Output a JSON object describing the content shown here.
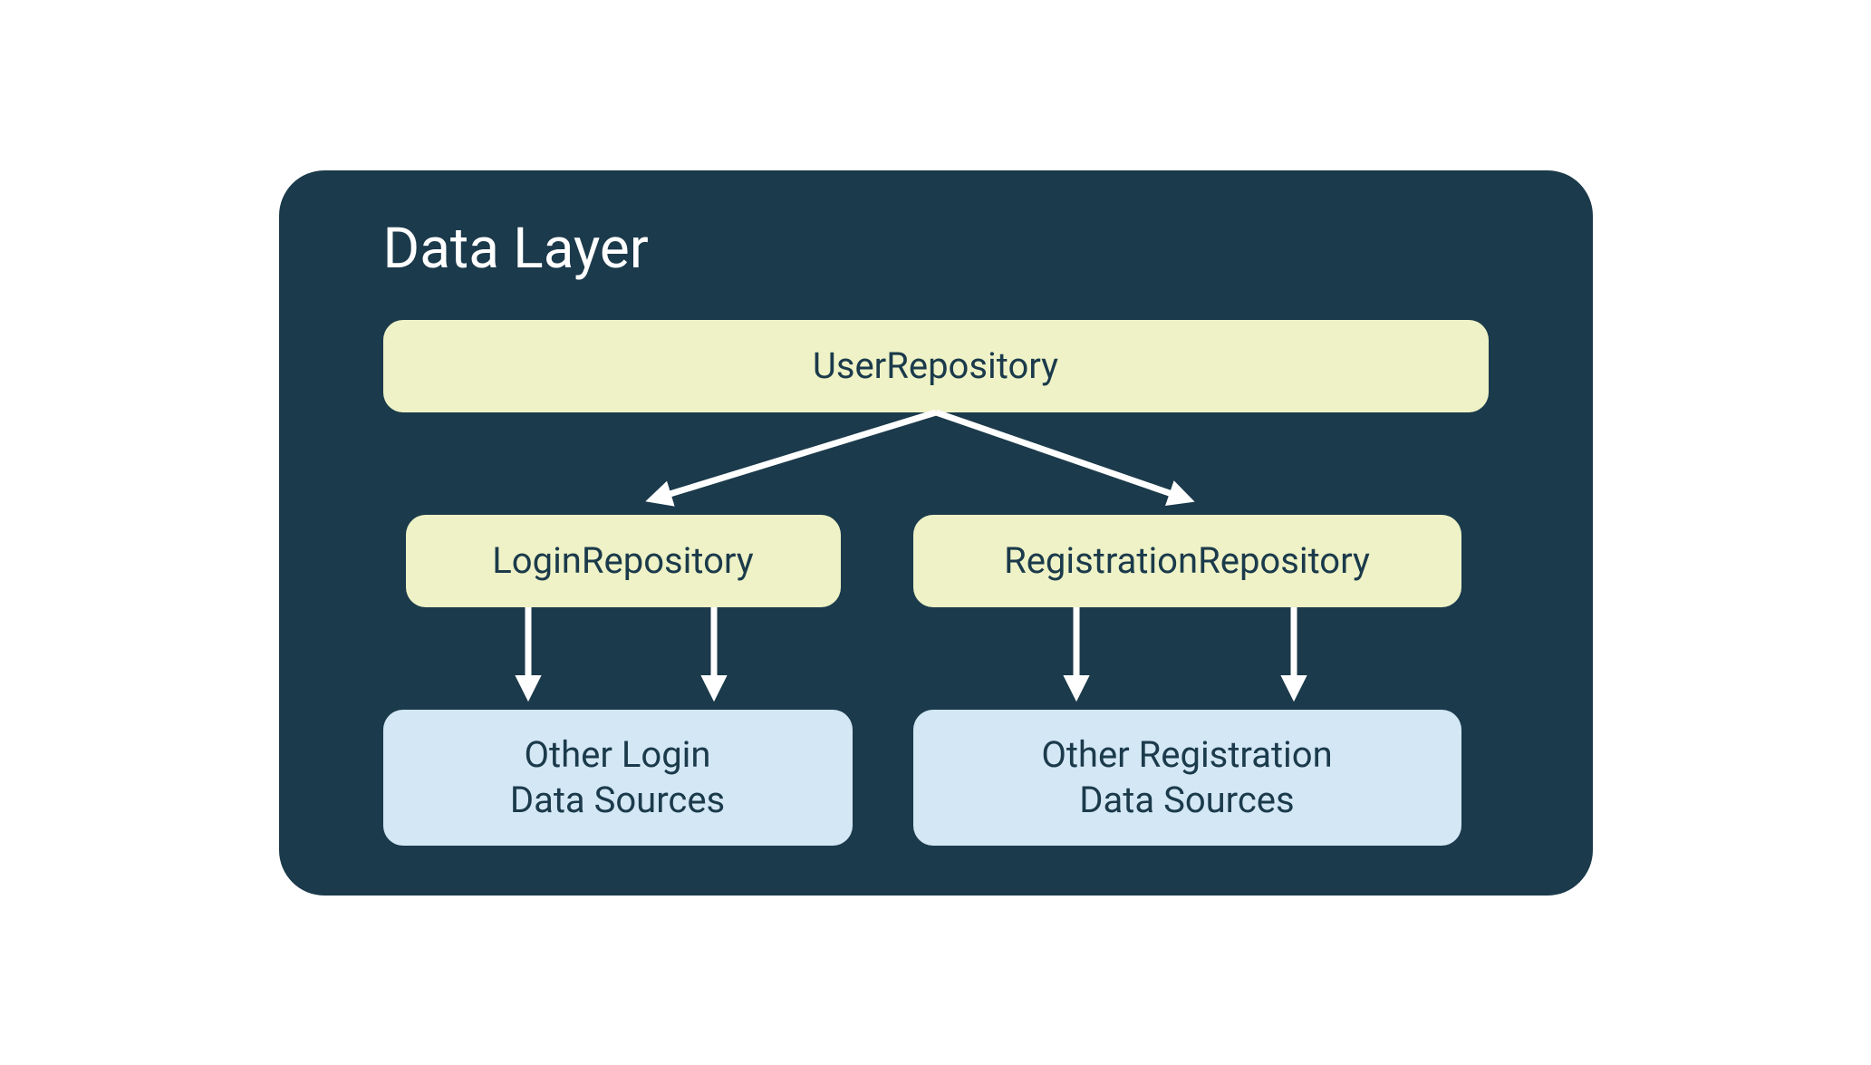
{
  "diagram": {
    "type": "tree",
    "title": "Data Layer",
    "background_color": "#1b3a4b",
    "title_color": "#ffffff",
    "title_fontsize": 62,
    "border_radius": 50,
    "nodes": {
      "root": {
        "label": "UserRepository",
        "bg_color": "#eef2c6",
        "text_color": "#1b3a4b",
        "fontsize": 40
      },
      "mid_left": {
        "label": "LoginRepository",
        "bg_color": "#eef2c6",
        "text_color": "#1b3a4b",
        "fontsize": 40
      },
      "mid_right": {
        "label": "RegistrationRepository",
        "bg_color": "#eef2c6",
        "text_color": "#1b3a4b",
        "fontsize": 40
      },
      "bot_left": {
        "label": "Other Login\nData Sources",
        "bg_color": "#d3e7f5",
        "text_color": "#1b3a4b",
        "fontsize": 40
      },
      "bot_right": {
        "label": "Other Registration\nData Sources",
        "bg_color": "#d3e7f5",
        "text_color": "#1b3a4b",
        "fontsize": 40
      }
    },
    "arrow_color": "#ffffff",
    "arrow_stroke_width": 7,
    "edges": [
      {
        "from": "root",
        "to": "mid_left",
        "style": "diagonal"
      },
      {
        "from": "root",
        "to": "mid_right",
        "style": "diagonal"
      },
      {
        "from": "mid_left",
        "to": "bot_left",
        "style": "vertical_pair"
      },
      {
        "from": "mid_right",
        "to": "bot_right",
        "style": "vertical_pair"
      }
    ]
  }
}
